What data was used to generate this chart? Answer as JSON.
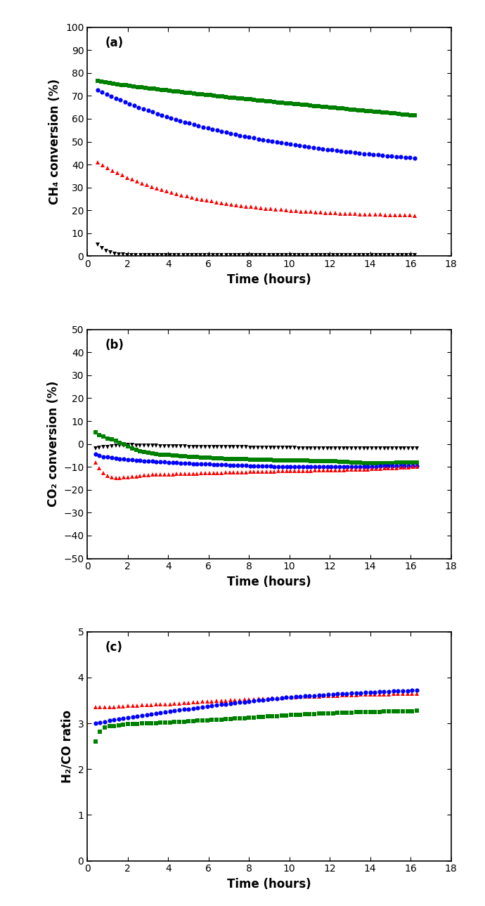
{
  "panel_a": {
    "title": "(a)",
    "ylabel": "CH₄ conversion (%)",
    "xlabel": "Time (hours)",
    "ylim": [
      0,
      100
    ],
    "xlim": [
      0,
      18
    ],
    "yticks": [
      0,
      10,
      20,
      30,
      40,
      50,
      60,
      70,
      80,
      90,
      100
    ],
    "xticks": [
      0,
      2,
      4,
      6,
      8,
      10,
      12,
      14,
      16,
      18
    ]
  },
  "panel_b": {
    "title": "(b)",
    "ylabel": "CO₂ conversion (%)",
    "xlabel": "Time (hours)",
    "ylim": [
      -50,
      50
    ],
    "xlim": [
      0,
      18
    ],
    "yticks": [
      -50,
      -40,
      -30,
      -20,
      -10,
      0,
      10,
      20,
      30,
      40,
      50
    ],
    "xticks": [
      0,
      2,
      4,
      6,
      8,
      10,
      12,
      14,
      16,
      18
    ]
  },
  "panel_c": {
    "title": "(c)",
    "ylabel": "H₂/CO ratio",
    "xlabel": "Time (hours)",
    "ylim": [
      0,
      5
    ],
    "xlim": [
      0,
      18
    ],
    "yticks": [
      0,
      1,
      2,
      3,
      4,
      5
    ],
    "xticks": [
      0,
      2,
      4,
      6,
      8,
      10,
      12,
      14,
      16,
      18
    ]
  },
  "colors": {
    "black": "#000000",
    "green": "#008000",
    "blue": "#0000FF",
    "red": "#FF0000"
  },
  "marker_size": 4.5,
  "bg_color": "#FFFFFF",
  "spine_color": "#000000",
  "font_size_label": 12,
  "font_size_tick": 10,
  "font_size_title": 12
}
